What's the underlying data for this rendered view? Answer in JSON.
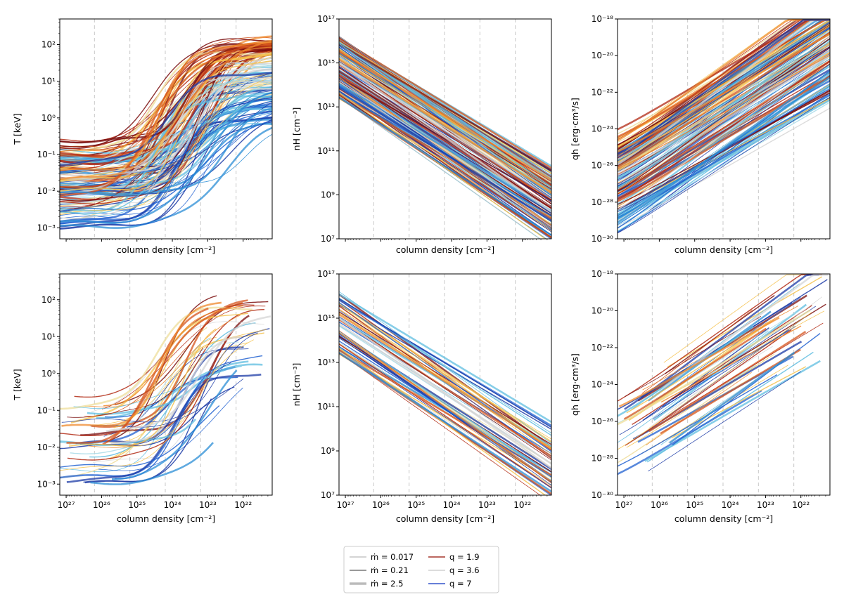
{
  "chart_data": {
    "type": "line",
    "layout": "2 rows x 3 columns",
    "x_axis": {
      "label": "column density [cm⁻²]",
      "scale": "log",
      "direction": "decreasing to the right",
      "xlim": [
        1.5e+27,
        1.5e+21
      ],
      "tick_labels": [
        "10²⁷",
        "10²⁶",
        "10²⁵",
        "10²⁴",
        "10²³",
        "10²²"
      ],
      "tick_exponents": [
        27,
        26,
        25,
        24,
        23,
        22
      ],
      "dashed_guides_exponents": [
        26.2,
        25.2,
        24.2,
        23.2,
        22.2
      ]
    },
    "panels": [
      {
        "id": "T-all",
        "ylabel": "T [keV]",
        "ylim_exp": [
          -3.3,
          2.7
        ],
        "ytick_exponents": [
          -3,
          -2,
          -1,
          0,
          1,
          2
        ],
        "ytick_labels": [
          "10⁻³",
          "10⁻²",
          "10⁻¹",
          "10⁰",
          "10¹",
          "10²"
        ],
        "show_xticklabels": false
      },
      {
        "id": "nH-all",
        "ylabel": "nH [cm⁻³]",
        "ylim_exp": [
          7,
          17
        ],
        "ytick_exponents": [
          7,
          9,
          11,
          13,
          15,
          17
        ],
        "ytick_labels": [
          "10⁷",
          "10⁹",
          "10¹¹",
          "10¹³",
          "10¹⁵",
          "10¹⁷"
        ],
        "show_xticklabels": false
      },
      {
        "id": "qh-all",
        "ylabel": "qh [erg·cm³/s]",
        "ylim_exp": [
          -30,
          -18
        ],
        "ytick_exponents": [
          -30,
          -28,
          -26,
          -24,
          -22,
          -20,
          -18
        ],
        "ytick_labels": [
          "10⁻³⁰",
          "10⁻²⁸",
          "10⁻²⁶",
          "10⁻²⁴",
          "10⁻²²",
          "10⁻²⁰",
          "10⁻¹⁸"
        ],
        "show_xticklabels": false
      },
      {
        "id": "T-sub",
        "ylabel": "T [keV]",
        "ylim_exp": [
          -3.3,
          2.7
        ],
        "ytick_exponents": [
          -3,
          -2,
          -1,
          0,
          1,
          2
        ],
        "ytick_labels": [
          "10⁻³",
          "10⁻²",
          "10⁻¹",
          "10⁰",
          "10¹",
          "10²"
        ],
        "show_xticklabels": true
      },
      {
        "id": "nH-sub",
        "ylabel": "nH [cm⁻³]",
        "ylim_exp": [
          7,
          17
        ],
        "ytick_exponents": [
          7,
          9,
          11,
          13,
          15,
          17
        ],
        "ytick_labels": [
          "10⁷",
          "10⁹",
          "10¹¹",
          "10¹³",
          "10¹⁵",
          "10¹⁷"
        ],
        "show_xticklabels": true
      },
      {
        "id": "qh-sub",
        "ylabel": "qh [erg·cm³/s]",
        "ylim_exp": [
          -30,
          -18
        ],
        "ytick_exponents": [
          -30,
          -28,
          -26,
          -24,
          -22,
          -20,
          -18
        ],
        "ytick_labels": [
          "10⁻³⁰",
          "10⁻²⁸",
          "10⁻²⁶",
          "10⁻²⁴",
          "10⁻²²",
          "10⁻²⁰",
          "10⁻¹⁸"
        ],
        "show_xticklabels": true
      }
    ],
    "legend": {
      "placement": "bottom-center",
      "entries": [
        {
          "label": "ṁ = 0.017",
          "color": "#aaaaaa",
          "width": 1
        },
        {
          "label": "ṁ = 0.21",
          "color": "#999999",
          "width": 2
        },
        {
          "label": "ṁ = 2.5",
          "color": "#bbbbbb",
          "width": 3.5
        },
        {
          "label": "q = 1.9",
          "color": "#a5372b",
          "width": 1.5
        },
        {
          "label": "q = 3.6",
          "color": "#d0d0d0",
          "width": 1.5
        },
        {
          "label": "q = 7",
          "color": "#3355cc",
          "width": 1.5
        }
      ]
    },
    "colormap": [
      "#7a0d0d",
      "#b22a14",
      "#d5541c",
      "#ef8a2e",
      "#f5c24e",
      "#eedd9a",
      "#d6d6d6",
      "#a9dbe8",
      "#5fbde0",
      "#2b8ed6",
      "#2060d0",
      "#1b3aa6"
    ],
    "curve_families": {
      "T": "plateau 10⁻³–10⁻¹ keV at high column density, rising to 1–150 keV toward 10²² cm⁻²",
      "nH": "power-law decline from ~10¹³–10¹⁶ cm⁻³ to ~10⁷–10⁹ cm⁻³",
      "qh": "rising from ~10⁻³⁰–10⁻²⁵ to 10⁻²¹–10⁻¹⁸"
    }
  }
}
